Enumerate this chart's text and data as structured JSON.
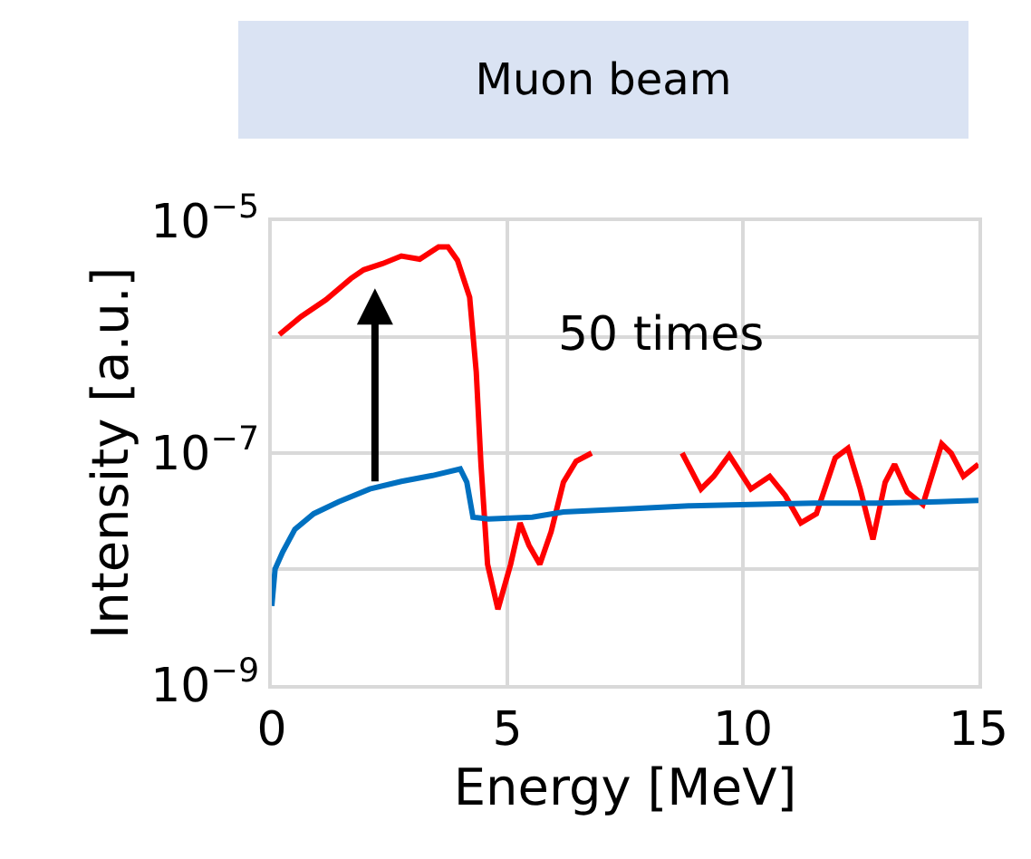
{
  "chart_data": {
    "type": "line",
    "title": "Muon beam",
    "xlabel": "Energy [MeV]",
    "ylabel": "Intensity [a.u.]",
    "log": "y",
    "grid": true,
    "marker": "none",
    "line_style": "solid",
    "xlim": [
      0,
      15
    ],
    "xticks": [
      0,
      5,
      10,
      15
    ],
    "ylim": [
      1e-09,
      1e-05
    ],
    "yticks": [
      {
        "value": 1e-05,
        "label": "10$^{−5}$"
      },
      {
        "value": 1e-06,
        "label": null
      },
      {
        "value": 1e-07,
        "label": "10$^{−7}$"
      },
      {
        "value": 1e-08,
        "label": null
      },
      {
        "value": 1e-09,
        "label": "10$^{−9}$"
      }
    ],
    "annotations": [
      "50 times"
    ],
    "series": [
      {
        "color": "#ff0000",
        "x": [
          0.16,
          0.62,
          1.15,
          1.68,
          1.95,
          2.35,
          2.75,
          3.14,
          3.54,
          3.74,
          3.94,
          4.2,
          4.34,
          4.44,
          4.58,
          4.8,
          5.07,
          5.27,
          5.46,
          5.69,
          5.93,
          6.19,
          6.46,
          6.79,
          7.8,
          8.71,
          9.11,
          9.38,
          9.71,
          10.17,
          10.57,
          10.9,
          11.23,
          11.56,
          11.96,
          12.23,
          12.49,
          12.76,
          13.02,
          13.22,
          13.49,
          13.82,
          14.22,
          14.42,
          14.68,
          15.0
        ],
        "values": [
          1.05e-06,
          1.5e-06,
          2.1e-06,
          3.2e-06,
          3.8e-06,
          4.3e-06,
          5e-06,
          4.7e-06,
          6e-06,
          6e-06,
          4.6e-06,
          2.2e-06,
          5e-07,
          8e-08,
          1.1e-08,
          4.5e-09,
          1.1e-08,
          2.5e-08,
          1.6e-08,
          1.1e-08,
          2.1e-08,
          5.6e-08,
          8.5e-08,
          1e-07,
          null,
          1e-07,
          4.9e-08,
          6.3e-08,
          9.6e-08,
          4.9e-08,
          6.3e-08,
          4.3e-08,
          2.5e-08,
          3e-08,
          9.1e-08,
          1.1e-07,
          4.9e-08,
          1.8e-08,
          5.6e-08,
          8e-08,
          4.6e-08,
          3.6e-08,
          1.2e-07,
          1e-07,
          6.3e-08,
          8e-08
        ]
      },
      {
        "color": "#0070c0",
        "x": [
          0.0,
          0.07,
          0.23,
          0.49,
          0.89,
          1.42,
          2.08,
          2.75,
          3.41,
          4.0,
          4.14,
          4.27,
          4.6,
          5.53,
          6.19,
          7.52,
          8.85,
          10.17,
          11.5,
          12.82,
          14.15,
          15.0
        ],
        "values": [
          4.8e-09,
          1e-08,
          1.4e-08,
          2.2e-08,
          3e-08,
          3.8e-08,
          4.9e-08,
          5.7e-08,
          6.4e-08,
          7.3e-08,
          5.6e-08,
          2.8e-08,
          2.7e-08,
          2.8e-08,
          3.1e-08,
          3.3e-08,
          3.5e-08,
          3.6e-08,
          3.7e-08,
          3.7e-08,
          3.8e-08,
          3.9e-08
        ]
      }
    ]
  }
}
